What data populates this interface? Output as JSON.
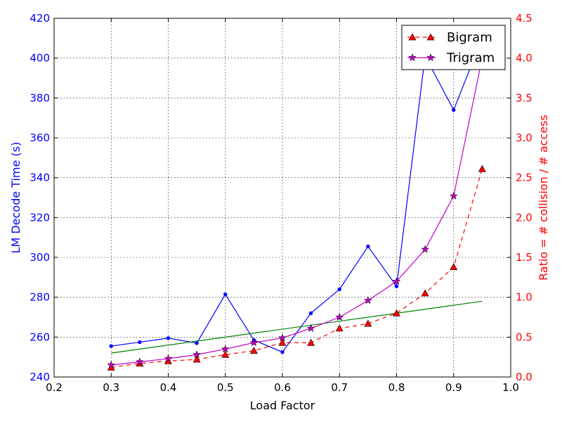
{
  "chart_data": {
    "type": "line",
    "xlabel": "Load Factor",
    "ylabel_left": "LM Decode Time (s)",
    "ylabel_right": "Ratio = # collision / # access",
    "xlim": [
      0.2,
      1.0
    ],
    "ylim_left": [
      240,
      420
    ],
    "ylim_right": [
      0.0,
      4.5
    ],
    "x_ticks": [
      "0.2",
      "0.3",
      "0.4",
      "0.5",
      "0.6",
      "0.7",
      "0.8",
      "0.9",
      "1.0"
    ],
    "y_left_ticks": [
      "240",
      "260",
      "280",
      "300",
      "320",
      "340",
      "360",
      "380",
      "400",
      "420"
    ],
    "y_right_ticks": [
      "0.0",
      "0.5",
      "1.0",
      "1.5",
      "2.0",
      "2.5",
      "3.0",
      "3.5",
      "4.0",
      "4.5"
    ],
    "grid": true,
    "legend_position": "top-right",
    "colors": {
      "left_axis": "#0000ff",
      "right_axis": "#ff0000",
      "decode_time": "#0000ff",
      "trend": "#008000",
      "bigram": "#ff0000",
      "trigram": "#bf00bf"
    },
    "left_series": [
      {
        "axis": "left",
        "color": "#0000ff",
        "marker": "dot",
        "x": [
          0.3,
          0.35,
          0.4,
          0.45,
          0.5,
          0.55,
          0.6,
          0.65,
          0.7,
          0.75,
          0.8,
          0.85,
          0.9,
          0.95
        ],
        "y": [
          255.5,
          257.5,
          259.5,
          257,
          281.5,
          258.5,
          252.5,
          272,
          284,
          305.5,
          285.5,
          401,
          374,
          410
        ]
      },
      {
        "axis": "left",
        "color": "#008000",
        "marker": "none",
        "x": [
          0.3,
          0.95
        ],
        "y": [
          252,
          278
        ]
      }
    ],
    "right_series": [
      {
        "name": "Bigram",
        "axis": "right",
        "color": "#ff0000",
        "marker": "triangle",
        "style": "dashed",
        "x": [
          0.3,
          0.35,
          0.4,
          0.45,
          0.5,
          0.55,
          0.6,
          0.65,
          0.7,
          0.75,
          0.8,
          0.85,
          0.9,
          0.95
        ],
        "y": [
          0.12,
          0.17,
          0.2,
          0.22,
          0.28,
          0.33,
          0.43,
          0.43,
          0.61,
          0.67,
          0.8,
          1.05,
          1.38,
          2.61
        ]
      },
      {
        "name": "Trigram",
        "axis": "right",
        "color": "#bf00bf",
        "marker": "star",
        "style": "solid",
        "x": [
          0.3,
          0.35,
          0.4,
          0.45,
          0.5,
          0.55,
          0.6,
          0.65,
          0.7,
          0.75,
          0.8,
          0.85,
          0.9,
          0.95
        ],
        "y": [
          0.15,
          0.19,
          0.23,
          0.28,
          0.35,
          0.43,
          0.49,
          0.61,
          0.75,
          0.96,
          1.2,
          1.6,
          2.27,
          4.0
        ]
      }
    ]
  }
}
